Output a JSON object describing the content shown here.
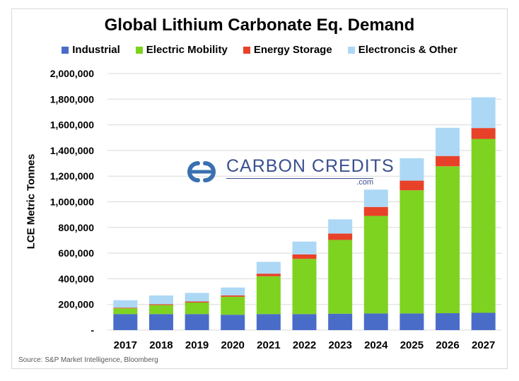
{
  "chart_data": {
    "type": "bar",
    "stacked": true,
    "title": "Global Lithium Carbonate Eq. Demand",
    "xlabel": "",
    "ylabel": "LCE Metric Tonnes",
    "ylim": [
      0,
      2000000
    ],
    "ytick_values": [
      0,
      200000,
      400000,
      600000,
      800000,
      1000000,
      1200000,
      1400000,
      1600000,
      1800000,
      2000000
    ],
    "ytick_labels": [
      "-",
      "200,000",
      "400,000",
      "600,000",
      "800,000",
      "1,000,000",
      "1,200,000",
      "1,400,000",
      "1,600,000",
      "1,800,000",
      "2,000,000"
    ],
    "grid": true,
    "legend_position": "top",
    "categories": [
      "2017",
      "2018",
      "2019",
      "2020",
      "2021",
      "2022",
      "2023",
      "2024",
      "2025",
      "2026",
      "2027"
    ],
    "series": [
      {
        "name": "Industrial",
        "color": "#4A6CC9",
        "values": [
          125000,
          125000,
          125000,
          120000,
          125000,
          125000,
          128000,
          130000,
          130000,
          132000,
          135000
        ]
      },
      {
        "name": "Electric Mobility",
        "color": "#7ED321",
        "values": [
          45000,
          70000,
          90000,
          140000,
          295000,
          430000,
          575000,
          760000,
          960000,
          1145000,
          1355000
        ]
      },
      {
        "name": "Energy Storage",
        "color": "#E8412A",
        "values": [
          5000,
          7000,
          8000,
          10000,
          20000,
          35000,
          50000,
          70000,
          75000,
          80000,
          85000
        ]
      },
      {
        "name": "Electroncis & Other",
        "color": "#ADD8F5",
        "values": [
          58000,
          68000,
          67000,
          62000,
          92000,
          100000,
          110000,
          135000,
          175000,
          220000,
          240000
        ]
      }
    ]
  },
  "legend_title_ignored": "",
  "watermark": {
    "name": "CARBON CREDITS",
    "domain": ".com"
  },
  "source": "Source: S&P Market Intelligence, Bloomberg"
}
